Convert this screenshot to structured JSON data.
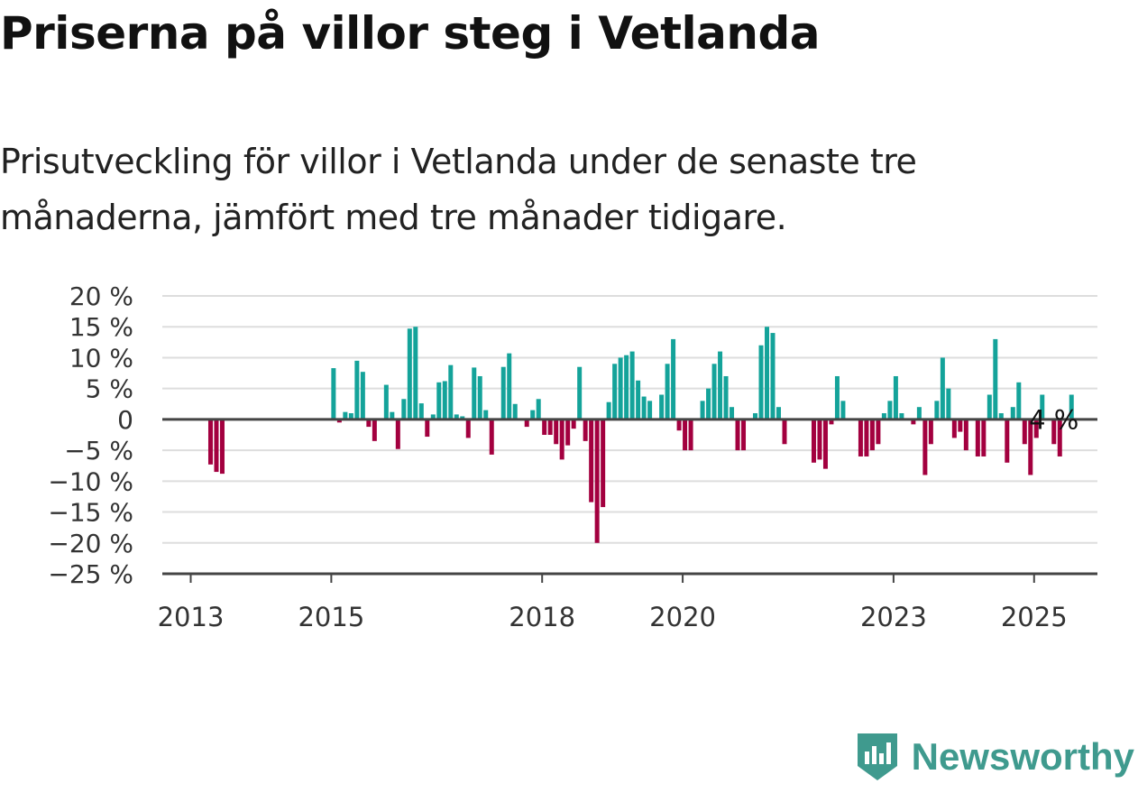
{
  "chart_data": {
    "type": "bar",
    "title": "Priserna på villor steg i Vetlanda",
    "subtitle": "Prisutveckling för villor i Vetlanda under de senaste tre månaderna, jämfört med tre månader tidigare.",
    "xlabel": "",
    "ylabel": "",
    "ylim": [
      -25,
      20
    ],
    "yticks": [
      20,
      15,
      10,
      5,
      0,
      -5,
      -10,
      -15,
      -20,
      -25
    ],
    "ytick_labels": [
      "20 %",
      "15 %",
      "10 %",
      "5 %",
      "0",
      "−5 %",
      "−10 %",
      "−15 %",
      "−20 %",
      "−25 %"
    ],
    "xtick_labels": [
      "2013",
      "2015",
      "2018",
      "2020",
      "2023",
      "2025"
    ],
    "xtick_years": [
      2013,
      2015,
      2018,
      2020,
      2023,
      2025
    ],
    "x_start": "2013-01",
    "grid": true,
    "colors": {
      "positive": "#14a39a",
      "negative": "#a3003f",
      "grid": "#dddddd",
      "axis": "#444444"
    },
    "annotation": {
      "text": "4 %",
      "month": "2025-04"
    },
    "values": [
      null,
      null,
      null,
      -7.3,
      -8.5,
      -8.8,
      null,
      null,
      null,
      null,
      null,
      null,
      null,
      null,
      null,
      null,
      null,
      null,
      null,
      null,
      null,
      null,
      null,
      null,
      8.3,
      -0.5,
      1.2,
      1.0,
      9.5,
      7.7,
      -1.2,
      -3.5,
      null,
      5.6,
      1.2,
      -4.8,
      3.3,
      14.7,
      15.0,
      2.6,
      -2.8,
      0.8,
      6.0,
      6.2,
      8.8,
      0.8,
      0.5,
      -3.0,
      8.4,
      7.0,
      1.5,
      -5.7,
      null,
      8.5,
      10.7,
      2.5,
      null,
      -1.2,
      1.5,
      3.3,
      -2.5,
      -2.5,
      -4.0,
      -6.5,
      -4.2,
      -1.5,
      8.5,
      -3.5,
      -13.4,
      -20.0,
      -14.2,
      2.8,
      9.0,
      10.0,
      10.4,
      11.0,
      6.3,
      3.7,
      3.0,
      null,
      4.0,
      9.0,
      13.0,
      -1.8,
      -5.0,
      -5.0,
      null,
      3.0,
      5.0,
      9.0,
      11.0,
      7.0,
      2.0,
      -5.0,
      -5.0,
      null,
      1.0,
      12.0,
      15.0,
      14.0,
      2.0,
      -4.0,
      null,
      null,
      null,
      null,
      -7.0,
      -6.5,
      -8.0,
      -0.8,
      7.0,
      3.0,
      null,
      null,
      -6.0,
      -6.0,
      -5.0,
      -4.0,
      1.0,
      3.0,
      7.0,
      1.0,
      null,
      -0.8,
      2.0,
      -9.0,
      -4.0,
      3.0,
      10.0,
      5.0,
      -3.0,
      -2.0,
      -5.0,
      null,
      -6.0,
      -6.0,
      4.0,
      13.0,
      1.0,
      -7.0,
      2.0,
      6.0,
      -4.0,
      -9.0,
      -3.0,
      4.0,
      null,
      -4.0,
      -6.0,
      null,
      4.0
    ]
  },
  "brand": {
    "name": "Newsworthy",
    "icon": "newsworthy-logo-icon"
  }
}
